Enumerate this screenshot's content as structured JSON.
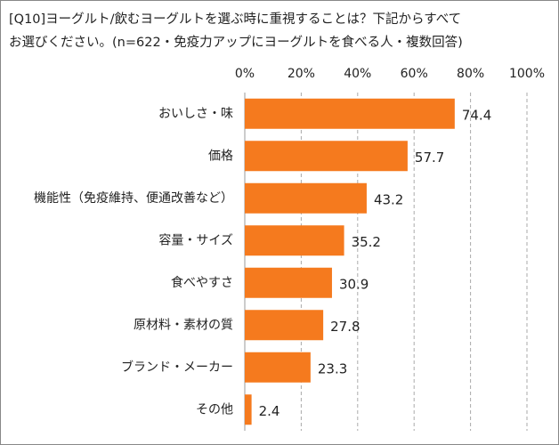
{
  "chart_data": {
    "type": "bar",
    "orientation": "horizontal",
    "title": [
      "[Q10]ヨーグルト/飲むヨーグルトを選ぶ時に重視することは？下記からすべて",
      "お選びください。(n=622・免疫力アップにヨーグルトを食べる人・複数回答)"
    ],
    "categories": [
      "おいしさ・味",
      "価格",
      "機能性（免疫維持、便通改善など）",
      "容量・サイズ",
      "食べやすさ",
      "原材料・素材の質",
      "ブランド・メーカー",
      "その他"
    ],
    "values": [
      74.4,
      57.7,
      43.2,
      35.2,
      30.9,
      27.8,
      23.3,
      2.4
    ],
    "color": "#f57a1e",
    "xlim": [
      0,
      100
    ],
    "xticks": [
      {
        "value": 0,
        "label": "0%"
      },
      {
        "value": 20,
        "label": "20%"
      },
      {
        "value": 40,
        "label": "40%"
      },
      {
        "value": 60,
        "label": "60%"
      },
      {
        "value": 80,
        "label": "80%"
      },
      {
        "value": 100,
        "label": "100%"
      }
    ],
    "grid": true
  }
}
